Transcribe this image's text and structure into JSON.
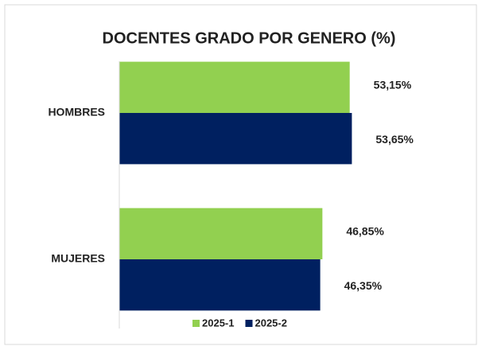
{
  "chart_data": {
    "type": "hbar",
    "title": "DOCENTES GRADO POR GENERO (%)",
    "categories": [
      "HOMBRES",
      "MUJERES"
    ],
    "series": [
      {
        "name": "2025-1",
        "color": "#92d050",
        "values": [
          53.15,
          46.85
        ],
        "value_labels": [
          "53,15%",
          "46,85%"
        ]
      },
      {
        "name": "2025-2",
        "color": "#002060",
        "values": [
          53.65,
          46.35
        ],
        "value_labels": [
          "53,65%",
          "46,35%"
        ]
      }
    ],
    "xlim": [
      0,
      80
    ],
    "grid": false,
    "legend": "bottom"
  }
}
